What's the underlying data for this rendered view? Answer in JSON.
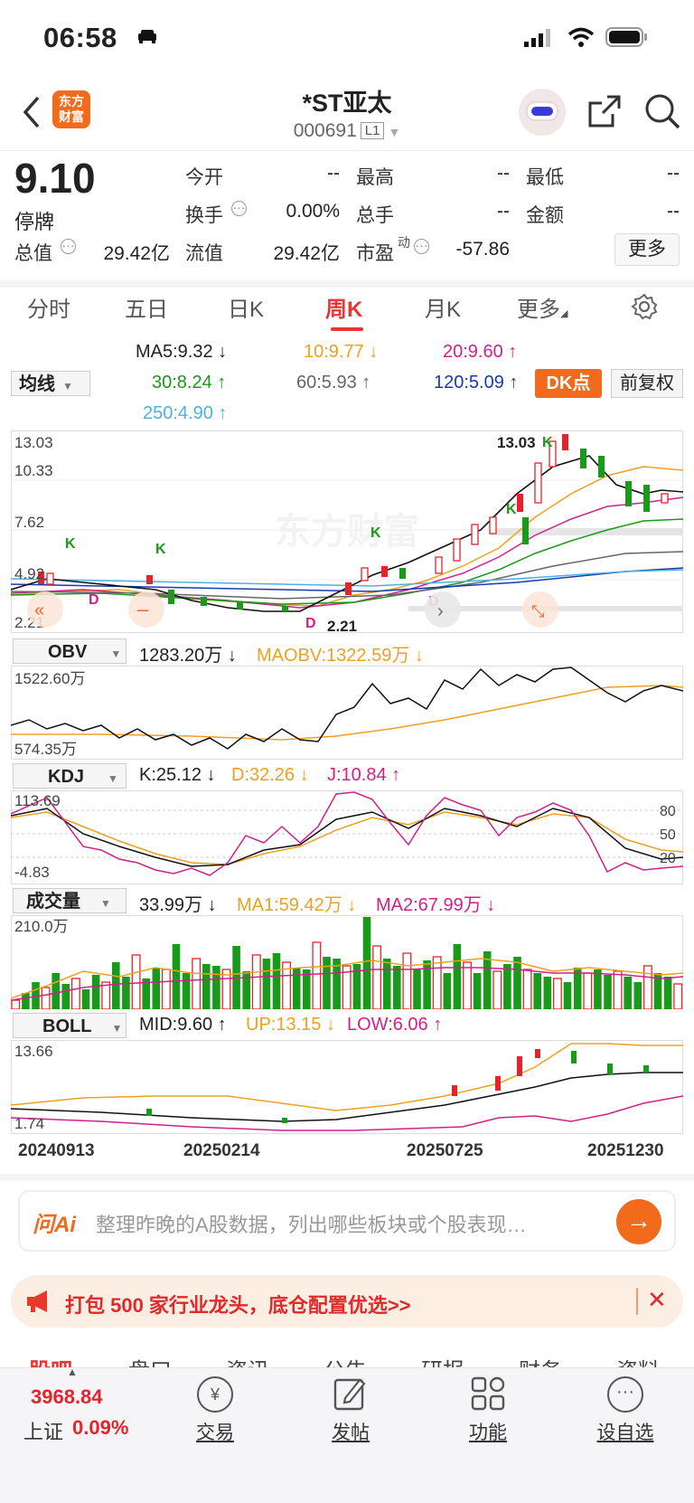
{
  "status": {
    "time": "06:58"
  },
  "header": {
    "title": "*ST亚太",
    "code": "000691",
    "level": "L1"
  },
  "quote": {
    "price": "9.10",
    "status": "停牌",
    "fields": [
      {
        "label": "今开",
        "value": "--"
      },
      {
        "label": "最高",
        "value": "--"
      },
      {
        "label": "最低",
        "value": "--"
      },
      {
        "label": "换手",
        "value": "0.00%"
      },
      {
        "label": "总手",
        "value": "--"
      },
      {
        "label": "金额",
        "value": "--"
      },
      {
        "label": "总值",
        "value": "29.42亿"
      },
      {
        "label": "流值",
        "value": "29.42亿"
      },
      {
        "label": "市盈",
        "value": "-57.86"
      }
    ],
    "pe_sup": "动",
    "more": "更多"
  },
  "tabs": [
    "分时",
    "五日",
    "日K",
    "周K",
    "月K",
    "更多"
  ],
  "active_tab": "周K",
  "ma_selector": "均线",
  "ma_values": [
    {
      "label": "MA5:9.32 ↓",
      "color": "#222222"
    },
    {
      "label": "10:9.77 ↓",
      "color": "#f0a020"
    },
    {
      "label": "20:9.60 ↑",
      "color": "#d0208a"
    },
    {
      "label": "30:8.24 ↑",
      "color": "#1a9a1a"
    },
    {
      "label": "60:5.93 ↑",
      "color": "#666666"
    },
    {
      "label": "120:5.09 ↑",
      "color": "#1a3ab0"
    },
    {
      "label": "250:4.90 ↑",
      "color": "#4ab0e8"
    }
  ],
  "dk_button": "DK点",
  "fq_button": "前复权",
  "kline": {
    "y_labels": [
      "13.03",
      "10.33",
      "7.62",
      "4.92",
      "2.21"
    ],
    "high_label": "13.03",
    "low_label": "2.21",
    "watermark": "东方财富",
    "markers": [
      "K",
      "K",
      "K",
      "K",
      "K",
      "D",
      "D",
      "D"
    ]
  },
  "obv": {
    "selector": "OBV",
    "value": "1283.20万 ↓",
    "ma": "MAOBV:1322.59万 ↓",
    "y_top": "1522.60万",
    "y_bottom": "574.35万"
  },
  "kdj": {
    "selector": "KDJ",
    "k": "K:25.12 ↓",
    "d": "D:32.26 ↓",
    "j": "J:10.84 ↑",
    "y_top": "113.69",
    "y_bottom": "-4.83",
    "levels": [
      "80",
      "50",
      "20"
    ]
  },
  "volume": {
    "selector": "成交量",
    "value": "33.99万 ↓",
    "ma1": "MA1:59.42万 ↓",
    "ma2": "MA2:67.99万 ↓",
    "y_top": "210.0万"
  },
  "boll": {
    "selector": "BOLL",
    "mid": "MID:9.60 ↑",
    "up": "UP:13.15 ↓",
    "low": "LOW:6.06 ↑",
    "y_top": "13.66",
    "y_bottom": "1.74"
  },
  "dates": [
    "20240913",
    "20250214",
    "20250725",
    "20251230"
  ],
  "ask": {
    "brand": "问Ai",
    "placeholder": "整理昨晚的A股数据，列出哪些板块或个股表现…"
  },
  "promo": {
    "text": "打包 500 家行业龙头，底仓配置优选>>"
  },
  "subtabs": [
    "股吧",
    "盘口",
    "资讯",
    "公告",
    "研报",
    "财务",
    "资料"
  ],
  "index": {
    "value": "3968.84",
    "name": "上证",
    "change": "0.09%"
  },
  "bottom": [
    "交易",
    "发帖",
    "功能",
    "设自选"
  ]
}
